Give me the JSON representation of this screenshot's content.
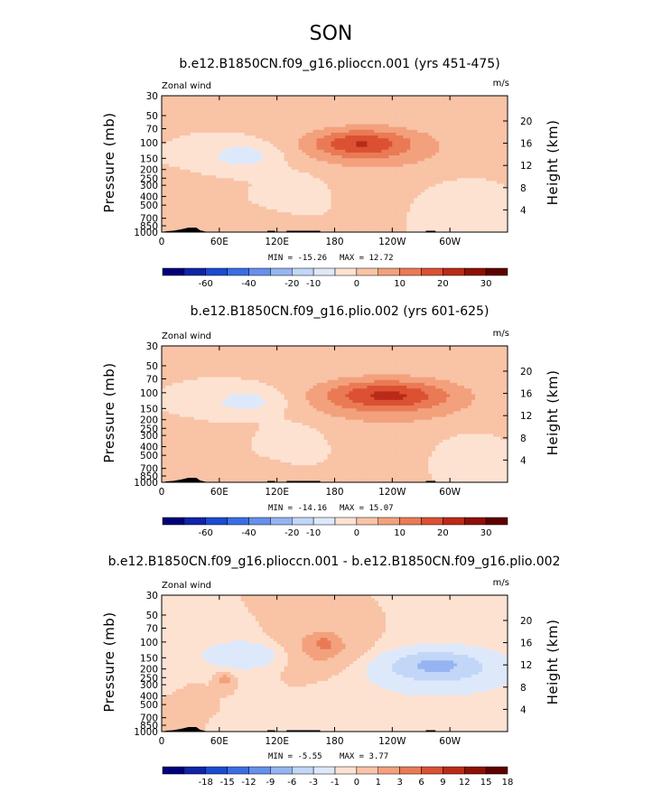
{
  "figure": {
    "suptitle": "SON"
  },
  "chart_data": [
    {
      "type": "heatmap",
      "title": "b.e12.B1850CN.f09_g16.plioccn.001 (yrs 451-475)",
      "field_label": "Zonal wind",
      "units": "m/s",
      "ylabel": "Pressure (mb)",
      "ylabel_right": "Height (km)",
      "x_ticks": [
        "0",
        "60E",
        "120E",
        "180",
        "120W",
        "60W"
      ],
      "x_tick_values": [
        0,
        60,
        120,
        180,
        240,
        300
      ],
      "xlim": [
        0,
        360
      ],
      "y_ticks": [
        "30",
        "50",
        "70",
        "100",
        "150",
        "200",
        "250",
        "300",
        "400",
        "500",
        "700",
        "850",
        "1000"
      ],
      "y_tick_values": [
        30,
        50,
        70,
        100,
        150,
        200,
        250,
        300,
        400,
        500,
        700,
        850,
        1000
      ],
      "ylim": [
        1000,
        30
      ],
      "height_ticks": [
        "4",
        "8",
        "12",
        "16",
        "20"
      ],
      "height_tick_values": [
        4,
        8,
        12,
        16,
        20
      ],
      "min_label": "MIN = -15.26",
      "max_label": "MAX = 12.72",
      "min": -15.26,
      "max": 12.72,
      "colorbar_levels": [
        -70,
        -60,
        -50,
        -40,
        -30,
        -20,
        -10,
        -5,
        0,
        5,
        10,
        15,
        20,
        25,
        30
      ],
      "colorbar_labels": [
        "-60",
        "-40",
        "-20",
        "-10",
        "0",
        "10",
        "20",
        "30"
      ],
      "colors": [
        "#00007a",
        "#0f24a8",
        "#1a4bd0",
        "#3a6ee6",
        "#6690ec",
        "#96b4f2",
        "#c2d6f8",
        "#dde9fb",
        "#fde2d2",
        "#f9c3a6",
        "#f3a17c",
        "#ea7a55",
        "#db5132",
        "#bb2a18",
        "#8e1005",
        "#5e0000"
      ],
      "background": "#d6e6fb",
      "features": [
        {
          "lon": 205,
          "p": 102,
          "value": 12,
          "rx": 48,
          "ry": 0.33
        },
        {
          "lon": 220,
          "p": 110,
          "value": 7,
          "rx": 78,
          "ry": 0.58
        },
        {
          "lon": 225,
          "p": 150,
          "value": 2,
          "rx": 112,
          "ry": 0.95
        },
        {
          "lon": 75,
          "p": 700,
          "value": 2,
          "rx": 55,
          "ry": 0.22
        },
        {
          "lon": 30,
          "p": 400,
          "value": 1.5,
          "rx": 30,
          "ry": 0.45
        },
        {
          "lon": 85,
          "p": 140,
          "value": -8.5,
          "rx": 38,
          "ry": 0.34
        },
        {
          "lon": 140,
          "p": 320,
          "value": -3.5,
          "rx": 30,
          "ry": 0.5
        },
        {
          "lon": 310,
          "p": 450,
          "value": -3,
          "rx": 35,
          "ry": 0.55
        }
      ]
    },
    {
      "type": "heatmap",
      "title": "b.e12.B1850CN.f09_g16.plio.002 (yrs 601-625)",
      "field_label": "Zonal wind",
      "units": "m/s",
      "ylabel": "Pressure (mb)",
      "ylabel_right": "Height (km)",
      "x_ticks": [
        "0",
        "60E",
        "120E",
        "180",
        "120W",
        "60W"
      ],
      "x_tick_values": [
        0,
        60,
        120,
        180,
        240,
        300
      ],
      "xlim": [
        0,
        360
      ],
      "y_ticks": [
        "30",
        "50",
        "70",
        "100",
        "150",
        "200",
        "250",
        "300",
        "400",
        "500",
        "700",
        "850",
        "1000"
      ],
      "y_tick_values": [
        30,
        50,
        70,
        100,
        150,
        200,
        250,
        300,
        400,
        500,
        700,
        850,
        1000
      ],
      "ylim": [
        1000,
        30
      ],
      "height_ticks": [
        "4",
        "8",
        "12",
        "16",
        "20"
      ],
      "height_tick_values": [
        4,
        8,
        12,
        16,
        20
      ],
      "min_label": "MIN = -14.16",
      "max_label": "MAX = 15.07",
      "min": -14.16,
      "max": 15.07,
      "colorbar_levels": [
        -70,
        -60,
        -50,
        -40,
        -30,
        -20,
        -10,
        -5,
        0,
        5,
        10,
        15,
        20,
        25,
        30
      ],
      "colorbar_labels": [
        "-60",
        "-40",
        "-20",
        "-10",
        "0",
        "10",
        "20",
        "30"
      ],
      "colors": [
        "#00007a",
        "#0f24a8",
        "#1a4bd0",
        "#3a6ee6",
        "#6690ec",
        "#96b4f2",
        "#c2d6f8",
        "#dde9fb",
        "#fde2d2",
        "#f9c3a6",
        "#f3a17c",
        "#ea7a55",
        "#db5132",
        "#bb2a18",
        "#8e1005",
        "#5e0000"
      ],
      "background": "#d6e6fb",
      "features": [
        {
          "lon": 235,
          "p": 105,
          "value": 13,
          "rx": 62,
          "ry": 0.36
        },
        {
          "lon": 235,
          "p": 120,
          "value": 7,
          "rx": 90,
          "ry": 0.62
        },
        {
          "lon": 235,
          "p": 160,
          "value": 2,
          "rx": 118,
          "ry": 1.0
        },
        {
          "lon": 75,
          "p": 700,
          "value": 2,
          "rx": 55,
          "ry": 0.22
        },
        {
          "lon": 30,
          "p": 400,
          "value": 1.5,
          "rx": 30,
          "ry": 0.45
        },
        {
          "lon": 90,
          "p": 125,
          "value": -8,
          "rx": 42,
          "ry": 0.34
        },
        {
          "lon": 140,
          "p": 320,
          "value": -3.5,
          "rx": 30,
          "ry": 0.5
        },
        {
          "lon": 320,
          "p": 450,
          "value": -3,
          "rx": 30,
          "ry": 0.5
        }
      ]
    },
    {
      "type": "heatmap",
      "title": "b.e12.B1850CN.f09_g16.plioccn.001 - b.e12.B1850CN.f09_g16.plio.002",
      "field_label": "Zonal wind",
      "units": "m/s",
      "ylabel": "Pressure (mb)",
      "ylabel_right": "Height (km)",
      "x_ticks": [
        "0",
        "60E",
        "120E",
        "180",
        "120W",
        "60W"
      ],
      "x_tick_values": [
        0,
        60,
        120,
        180,
        240,
        300
      ],
      "xlim": [
        0,
        360
      ],
      "y_ticks": [
        "30",
        "50",
        "70",
        "100",
        "150",
        "200",
        "250",
        "300",
        "400",
        "500",
        "700",
        "850",
        "1000"
      ],
      "y_tick_values": [
        30,
        50,
        70,
        100,
        150,
        200,
        250,
        300,
        400,
        500,
        700,
        850,
        1000
      ],
      "ylim": [
        1000,
        30
      ],
      "height_ticks": [
        "4",
        "8",
        "12",
        "16",
        "20"
      ],
      "height_tick_values": [
        4,
        8,
        12,
        16,
        20
      ],
      "min_label": "MIN = -5.55",
      "max_label": "MAX = 3.77",
      "min": -5.55,
      "max": 3.77,
      "colorbar_levels": [
        -21,
        -18,
        -15,
        -12,
        -9,
        -6,
        -3,
        -1,
        0,
        1,
        3,
        6,
        9,
        12,
        15,
        18
      ],
      "colorbar_labels": [
        "-18",
        "-15",
        "-12",
        "-9",
        "-6",
        "-3",
        "-1",
        "0",
        "1",
        "3",
        "6",
        "9",
        "12",
        "15",
        "18"
      ],
      "colors": [
        "#00007a",
        "#0f24a8",
        "#1a4bd0",
        "#3a6ee6",
        "#6690ec",
        "#96b4f2",
        "#c2d6f8",
        "#dde9fb",
        "#fde2d2",
        "#f9c3a6",
        "#f3a17c",
        "#ea7a55",
        "#db5132",
        "#bb2a18",
        "#8e1005",
        "#5e0000"
      ],
      "background": "#fde2d2",
      "features": [
        {
          "lon": 165,
          "p": 120,
          "value": 1.6,
          "rx": 50,
          "ry": 0.6
        },
        {
          "lon": 170,
          "p": 105,
          "value": 3.5,
          "rx": 9,
          "ry": 0.17
        },
        {
          "lon": 65,
          "p": 260,
          "value": 1.6,
          "rx": 9,
          "ry": 0.2
        },
        {
          "lon": 30,
          "p": 450,
          "value": 0.6,
          "rx": 14,
          "ry": 0.35
        },
        {
          "lon": 85,
          "p": 140,
          "value": -2.2,
          "rx": 38,
          "ry": 0.3
        },
        {
          "lon": 85,
          "p": 135,
          "value": -0.7,
          "rx": 55,
          "ry": 0.55
        },
        {
          "lon": 285,
          "p": 180,
          "value": -4.5,
          "rx": 40,
          "ry": 0.3
        },
        {
          "lon": 290,
          "p": 200,
          "value": -2.2,
          "rx": 75,
          "ry": 0.55
        },
        {
          "lon": 285,
          "p": 250,
          "value": -0.7,
          "rx": 92,
          "ry": 0.95
        },
        {
          "lon": 15,
          "p": 200,
          "value": -0.7,
          "rx": 15,
          "ry": 0.4
        },
        {
          "lon": 130,
          "p": 750,
          "value": -0.7,
          "rx": 40,
          "ry": 0.2
        },
        {
          "lon": 220,
          "p": 700,
          "value": -0.7,
          "rx": 30,
          "ry": 0.2
        }
      ]
    }
  ]
}
